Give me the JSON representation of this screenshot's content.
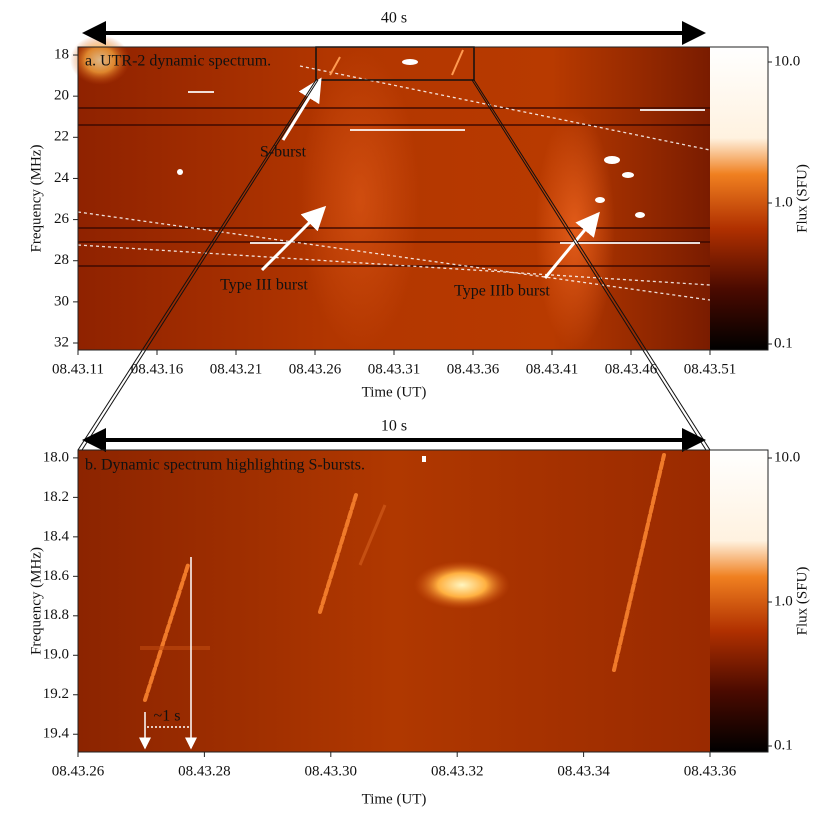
{
  "chart_data": [
    {
      "type": "spectrogram",
      "title": "a. UTR-2 dynamic spectrum.",
      "xlabel": "Time (UT)",
      "ylabel": "Frequency (MHz)",
      "xlim": [
        11,
        51
      ],
      "xticks": [
        {
          "value": 11,
          "label": "08.43.11"
        },
        {
          "value": 16,
          "label": "08.43.16"
        },
        {
          "value": 21,
          "label": "08.43.21"
        },
        {
          "value": 26,
          "label": "08.43.26"
        },
        {
          "value": 31,
          "label": "08.43.31"
        },
        {
          "value": 36,
          "label": "08.43.36"
        },
        {
          "value": 41,
          "label": "08.43.41"
        },
        {
          "value": 46,
          "label": "08.43.46"
        },
        {
          "value": 51,
          "label": "08.43.51"
        }
      ],
      "ylim": [
        32.34,
        17.61
      ],
      "yticks": [
        18,
        20,
        22,
        24,
        26,
        28,
        30,
        32
      ],
      "colorbar": {
        "label": "Flux (SFU)",
        "scale": "log",
        "lim": [
          0.1,
          10
        ],
        "ticks": [
          {
            "value": 10,
            "label": "10.0"
          },
          {
            "value": 1,
            "label": "1.0"
          },
          0.1
        ]
      },
      "annotations": [
        "40 s",
        "S-burst",
        "Type III burst",
        "Type IIIb burst"
      ]
    },
    {
      "type": "spectrogram",
      "title": "b. Dynamic spectrum highlighting S-bursts.",
      "xlabel": "Time (UT)",
      "ylabel": "Frequency (MHz)",
      "xlim": [
        26,
        36
      ],
      "xticks": [
        {
          "value": 26,
          "label": "08.43.26"
        },
        {
          "value": 28,
          "label": "08.43.28"
        },
        {
          "value": 30,
          "label": "08.43.30"
        },
        {
          "value": 32,
          "label": "08.43.32"
        },
        {
          "value": 34,
          "label": "08.43.34"
        },
        {
          "value": 36,
          "label": "08.43.36"
        }
      ],
      "ylim": [
        19.49,
        17.96
      ],
      "yticks": [
        {
          "value": 18,
          "label": "18.0"
        },
        18.2,
        18.4,
        18.6,
        18.8,
        {
          "value": 19,
          "label": "19.0"
        },
        19.2,
        19.4
      ],
      "colorbar": {
        "label": "Flux (SFU)",
        "scale": "log",
        "lim": [
          0.1,
          10
        ],
        "ticks": [
          {
            "value": 10,
            "label": "10.0"
          },
          {
            "value": 1,
            "label": "1.0"
          },
          0.1
        ]
      },
      "annotations": [
        "10 s",
        "~1 s"
      ]
    }
  ]
}
